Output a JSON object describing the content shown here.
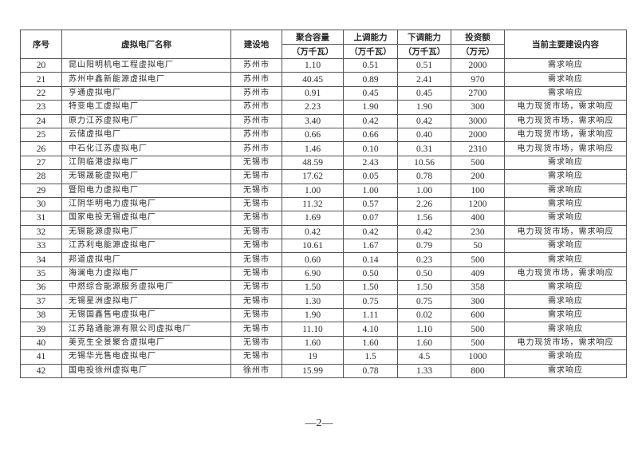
{
  "table": {
    "headers": {
      "index": "序号",
      "name": "虚拟电厂名称",
      "location": "建设地",
      "capacity": "聚合容量",
      "capacity_unit": "（万千瓦）",
      "up": "上调能力",
      "up_unit": "（万千瓦）",
      "down": "下调能力",
      "down_unit": "（万千瓦）",
      "invest": "投资额",
      "invest_unit": "（万元）",
      "content": "当前主要建设内容"
    },
    "rows": [
      [
        "20",
        "昆山阳明机电工程虚拟电厂",
        "苏州市",
        "1.10",
        "0.51",
        "0.51",
        "2000",
        "需求响应"
      ],
      [
        "21",
        "苏州中鑫新能源虚拟电厂",
        "苏州市",
        "40.45",
        "0.89",
        "2.41",
        "970",
        "需求响应"
      ],
      [
        "22",
        "亨通虚拟电厂",
        "苏州市",
        "0.91",
        "0.45",
        "0.45",
        "2700",
        "需求响应"
      ],
      [
        "23",
        "特变电工虚拟电厂",
        "苏州市",
        "2.23",
        "1.90",
        "1.90",
        "300",
        "电力现货市场，需求响应"
      ],
      [
        "24",
        "原力江苏虚拟电厂",
        "苏州市",
        "3.40",
        "0.42",
        "0.42",
        "3000",
        "电力现货市场，需求响应"
      ],
      [
        "25",
        "云储虚拟电厂",
        "苏州市",
        "0.66",
        "0.66",
        "0.40",
        "2000",
        "电力现货市场，需求响应"
      ],
      [
        "26",
        "中石化江苏虚拟电厂",
        "苏州市",
        "1.46",
        "0.10",
        "0.31",
        "2310",
        "电力现货市场，需求响应"
      ],
      [
        "27",
        "江阴临港虚拟电厂",
        "无锡市",
        "48.59",
        "2.43",
        "10.56",
        "500",
        "需求响应"
      ],
      [
        "28",
        "无锡晟能虚拟电厂",
        "无锡市",
        "17.62",
        "0.05",
        "0.78",
        "200",
        "需求响应"
      ],
      [
        "29",
        "暨阳电力虚拟电厂",
        "无锡市",
        "1.00",
        "1.00",
        "1.00",
        "100",
        "需求响应"
      ],
      [
        "30",
        "江阴华明电力虚拟电厂",
        "无锡市",
        "11.32",
        "0.57",
        "2.26",
        "1200",
        "需求响应"
      ],
      [
        "31",
        "国家电投无锡虚拟电厂",
        "无锡市",
        "1.69",
        "0.07",
        "1.56",
        "400",
        "需求响应"
      ],
      [
        "32",
        "无锡能源虚拟电厂",
        "无锡市",
        "0.42",
        "0.42",
        "0.42",
        "230",
        "电力现货市场，需求响应"
      ],
      [
        "33",
        "江苏利电能源虚拟电厂",
        "无锡市",
        "10.61",
        "1.67",
        "0.79",
        "50",
        "需求响应"
      ],
      [
        "34",
        "邦道虚拟电厂",
        "无锡市",
        "0.60",
        "0.14",
        "0.23",
        "500",
        "需求响应"
      ],
      [
        "35",
        "海澜电力虚拟电厂",
        "无锡市",
        "6.90",
        "0.50",
        "0.50",
        "409",
        "电力现货市场，需求响应"
      ],
      [
        "36",
        "中燃综合能源服务虚拟电厂",
        "无锡市",
        "1.50",
        "1.50",
        "1.50",
        "358",
        "需求响应"
      ],
      [
        "37",
        "无锡星洲虚拟电厂",
        "无锡市",
        "1.30",
        "0.75",
        "0.75",
        "300",
        "需求响应"
      ],
      [
        "38",
        "无锡国鑫售电虚拟电厂",
        "无锡市",
        "1.90",
        "1.11",
        "0.02",
        "600",
        "需求响应"
      ],
      [
        "39",
        "江苏路通能源有限公司虚拟电厂",
        "无锡市",
        "11.10",
        "4.10",
        "1.10",
        "500",
        "需求响应"
      ],
      [
        "40",
        "美克生全景聚合虚拟电厂",
        "无锡市",
        "1.60",
        "1.60",
        "1.60",
        "500",
        "电力现货市场，需求响应"
      ],
      [
        "41",
        "无锡华光售电虚拟电厂",
        "无锡市",
        "19",
        "1.5",
        "4.5",
        "1000",
        "需求响应"
      ],
      [
        "42",
        "国电投徐州虚拟电厂",
        "徐州市",
        "15.99",
        "0.78",
        "1.33",
        "800",
        "需求响应"
      ]
    ]
  },
  "footer": {
    "page_number": "—2—"
  }
}
